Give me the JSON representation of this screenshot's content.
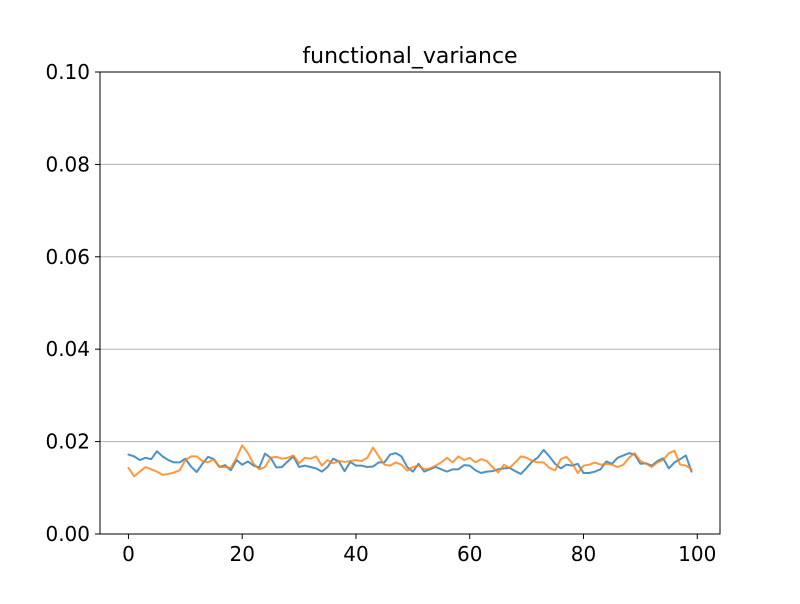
{
  "chart_data": {
    "type": "line",
    "title": "functional_variance",
    "xlabel": "",
    "ylabel": "",
    "xlim": [
      -5,
      104
    ],
    "ylim": [
      0,
      0.1
    ],
    "grid": "y-major",
    "x_ticks": [
      0,
      20,
      40,
      60,
      80,
      100
    ],
    "x_tick_labels": [
      "0",
      "20",
      "40",
      "60",
      "80",
      "100"
    ],
    "y_ticks": [
      0,
      0.02,
      0.04,
      0.06,
      0.08,
      0.1
    ],
    "y_tick_labels": [
      "0.00",
      "0.02",
      "0.04",
      "0.06",
      "0.08",
      "0.10"
    ],
    "colors": {
      "series_1": "#1f77b4",
      "series_2": "#ff7f0e"
    },
    "series": [
      {
        "name": "series_1",
        "color": "#1f77b4",
        "x": [
          0,
          1,
          2,
          3,
          4,
          5,
          6,
          7,
          8,
          9,
          10,
          11,
          12,
          13,
          14,
          15,
          16,
          17,
          18,
          19,
          20,
          21,
          22,
          23,
          24,
          25,
          26,
          27,
          28,
          29,
          30,
          31,
          32,
          33,
          34,
          35,
          36,
          37,
          38,
          39,
          40,
          41,
          42,
          43,
          44,
          45,
          46,
          47,
          48,
          49,
          50,
          51,
          52,
          53,
          54,
          55,
          56,
          57,
          58,
          59,
          60,
          61,
          62,
          63,
          64,
          65,
          66,
          67,
          68,
          69,
          70,
          71,
          72,
          73,
          74,
          75,
          76,
          77,
          78,
          79,
          80,
          81,
          82,
          83,
          84,
          85,
          86,
          87,
          88,
          89,
          90,
          91,
          92,
          93,
          94,
          95,
          96,
          97,
          98,
          99
        ],
        "values": [
          0.0172,
          0.0168,
          0.016,
          0.0165,
          0.0162,
          0.0179,
          0.0168,
          0.016,
          0.0155,
          0.0155,
          0.0163,
          0.0146,
          0.0134,
          0.0152,
          0.0167,
          0.0162,
          0.0145,
          0.0149,
          0.0138,
          0.016,
          0.015,
          0.0157,
          0.0148,
          0.0144,
          0.0174,
          0.0165,
          0.0144,
          0.0145,
          0.0157,
          0.0168,
          0.0145,
          0.0148,
          0.0145,
          0.0142,
          0.0135,
          0.0145,
          0.0163,
          0.0157,
          0.0136,
          0.0156,
          0.0148,
          0.0148,
          0.0145,
          0.0146,
          0.0155,
          0.0155,
          0.0172,
          0.0175,
          0.0168,
          0.0145,
          0.0135,
          0.0152,
          0.0135,
          0.014,
          0.0145,
          0.014,
          0.0135,
          0.014,
          0.014,
          0.0149,
          0.0148,
          0.0138,
          0.0132,
          0.0135,
          0.0136,
          0.014,
          0.0142,
          0.0143,
          0.0136,
          0.013,
          0.0143,
          0.0157,
          0.0166,
          0.0182,
          0.0168,
          0.0152,
          0.0142,
          0.015,
          0.0148,
          0.0152,
          0.0132,
          0.0132,
          0.0135,
          0.014,
          0.0157,
          0.0152,
          0.0165,
          0.017,
          0.0175,
          0.0172,
          0.0152,
          0.0153,
          0.0148,
          0.0158,
          0.0164,
          0.0142,
          0.0155,
          0.0162,
          0.017,
          0.0135
        ]
      },
      {
        "name": "series_2",
        "color": "#ff7f0e",
        "x": [
          0,
          1,
          2,
          3,
          4,
          5,
          6,
          7,
          8,
          9,
          10,
          11,
          12,
          13,
          14,
          15,
          16,
          17,
          18,
          19,
          20,
          21,
          22,
          23,
          24,
          25,
          26,
          27,
          28,
          29,
          30,
          31,
          32,
          33,
          34,
          35,
          36,
          37,
          38,
          39,
          40,
          41,
          42,
          43,
          44,
          45,
          46,
          47,
          48,
          49,
          50,
          51,
          52,
          53,
          54,
          55,
          56,
          57,
          58,
          59,
          60,
          61,
          62,
          63,
          64,
          65,
          66,
          67,
          68,
          69,
          70,
          71,
          72,
          73,
          74,
          75,
          76,
          77,
          78,
          79,
          80,
          81,
          82,
          83,
          84,
          85,
          86,
          87,
          88,
          89,
          90,
          91,
          92,
          93,
          94,
          95,
          96,
          97,
          98,
          99
        ],
        "values": [
          0.0143,
          0.0125,
          0.0135,
          0.0145,
          0.014,
          0.0135,
          0.0128,
          0.013,
          0.0133,
          0.0138,
          0.016,
          0.0168,
          0.0168,
          0.0158,
          0.0155,
          0.0162,
          0.0145,
          0.0145,
          0.0143,
          0.0165,
          0.0192,
          0.0175,
          0.0152,
          0.014,
          0.0145,
          0.0165,
          0.0167,
          0.0163,
          0.0165,
          0.017,
          0.0153,
          0.0165,
          0.0163,
          0.0168,
          0.0148,
          0.016,
          0.0153,
          0.0158,
          0.0156,
          0.0158,
          0.016,
          0.0158,
          0.0165,
          0.0187,
          0.0168,
          0.015,
          0.0148,
          0.0155,
          0.015,
          0.0137,
          0.0145,
          0.0148,
          0.014,
          0.0142,
          0.0148,
          0.0155,
          0.0165,
          0.0155,
          0.0168,
          0.016,
          0.0165,
          0.0155,
          0.0162,
          0.0158,
          0.0145,
          0.0133,
          0.015,
          0.0143,
          0.0155,
          0.0168,
          0.0165,
          0.0158,
          0.0155,
          0.0155,
          0.0143,
          0.0138,
          0.0162,
          0.0167,
          0.0153,
          0.0132,
          0.0148,
          0.015,
          0.0155,
          0.015,
          0.0152,
          0.015,
          0.0145,
          0.015,
          0.0165,
          0.0175,
          0.0158,
          0.0152,
          0.0145,
          0.0155,
          0.016,
          0.0175,
          0.018,
          0.015,
          0.0148,
          0.014
        ]
      }
    ]
  }
}
